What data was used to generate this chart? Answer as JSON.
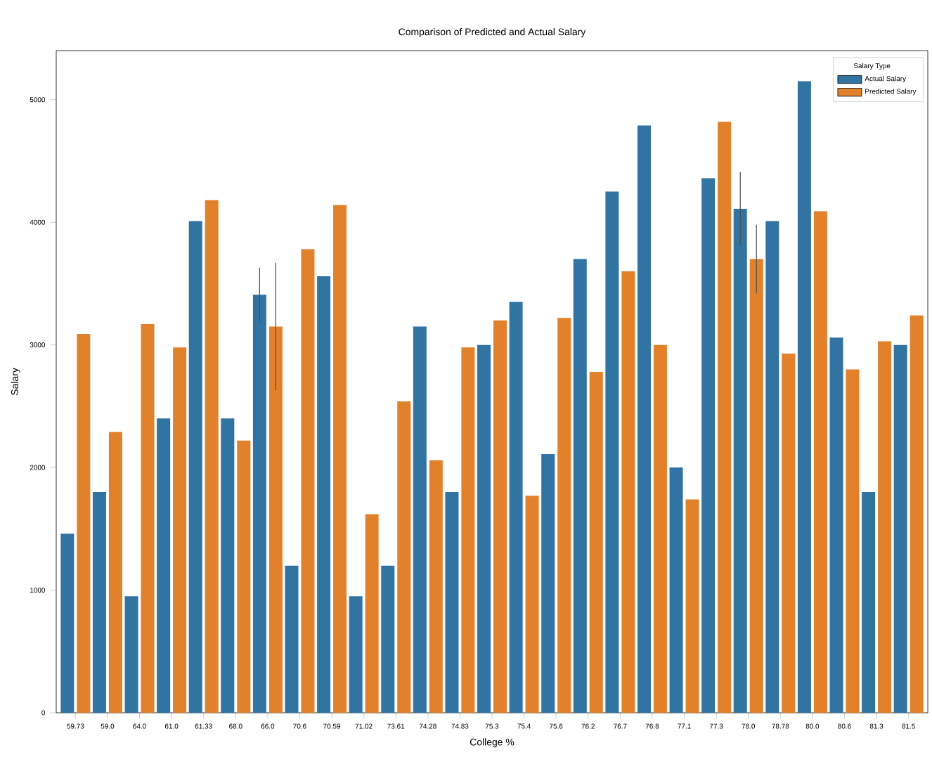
{
  "chart_data": {
    "type": "bar",
    "title": "Comparison of Predicted and Actual Salary",
    "xlabel": "College %",
    "ylabel": "Salary",
    "legend_title": "Salary Type",
    "categories": [
      "59.73",
      "59.0",
      "64.0",
      "61.0",
      "61.33",
      "68.0",
      "66.0",
      "70.6",
      "70.59",
      "71.02",
      "73.61",
      "74.28",
      "74.83",
      "75.3",
      "75.4",
      "75.6",
      "76.2",
      "76.7",
      "76.8",
      "77.1",
      "77.3",
      "78.0",
      "78.78",
      "80.0",
      "80.6",
      "81.3",
      "81.5"
    ],
    "series": [
      {
        "name": "Actual Salary",
        "color": "#3274a1",
        "values": [
          1460,
          1800,
          950,
          2400,
          4010,
          2400,
          3410,
          1200,
          3560,
          950,
          1200,
          3150,
          1800,
          3000,
          3350,
          2110,
          3700,
          4250,
          4790,
          2000,
          4360,
          4110,
          4010,
          5150,
          3060,
          1800,
          3000
        ],
        "errors": [
          null,
          null,
          null,
          null,
          null,
          null,
          220,
          null,
          null,
          null,
          null,
          null,
          null,
          null,
          null,
          null,
          null,
          null,
          null,
          null,
          null,
          300,
          null,
          null,
          null,
          null,
          null
        ]
      },
      {
        "name": "Predicted Salary",
        "color": "#e1812c",
        "values": [
          3090,
          2290,
          3170,
          2980,
          4180,
          2220,
          3150,
          3780,
          4140,
          1620,
          2540,
          2060,
          2980,
          3200,
          1770,
          3220,
          2780,
          3600,
          3000,
          1740,
          4820,
          3700,
          2930,
          4090,
          2800,
          3030,
          3240
        ],
        "errors": [
          null,
          null,
          null,
          null,
          null,
          null,
          520,
          null,
          null,
          null,
          null,
          null,
          null,
          null,
          null,
          null,
          null,
          null,
          null,
          null,
          null,
          280,
          null,
          null,
          null,
          null,
          null
        ]
      }
    ],
    "ylim": [
      0,
      5400
    ],
    "yticks": [
      0,
      1000,
      2000,
      3000,
      4000,
      5000
    ],
    "legend": "top right",
    "grid": false
  }
}
